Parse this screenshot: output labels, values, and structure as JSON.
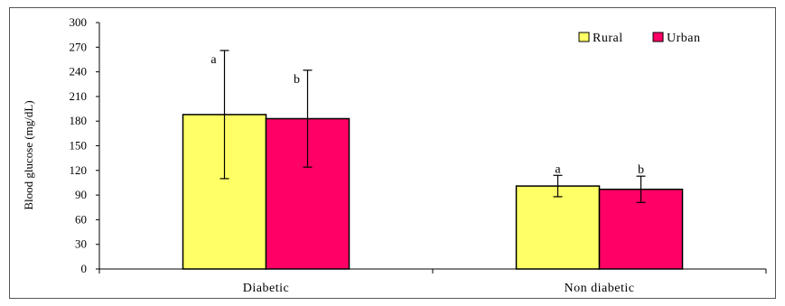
{
  "chart_data": {
    "type": "bar",
    "title": "",
    "xlabel": "",
    "ylabel": "Blood glucose (mg/dL)",
    "ylim": [
      0,
      300
    ],
    "yticks": [
      0,
      30,
      60,
      90,
      120,
      150,
      180,
      210,
      240,
      270,
      300
    ],
    "grid": false,
    "legend_position": "top-right",
    "categories": [
      "Diabetic",
      "Non diabetic"
    ],
    "series": [
      {
        "name": "Rural",
        "color": "#ffff66",
        "values": [
          188,
          101
        ],
        "error": [
          78,
          13
        ],
        "labels": [
          "a",
          "a"
        ]
      },
      {
        "name": "Urban",
        "color": "#ff0066",
        "values": [
          183,
          97
        ],
        "error": [
          59,
          16
        ],
        "labels": [
          "b",
          "b"
        ]
      }
    ]
  }
}
